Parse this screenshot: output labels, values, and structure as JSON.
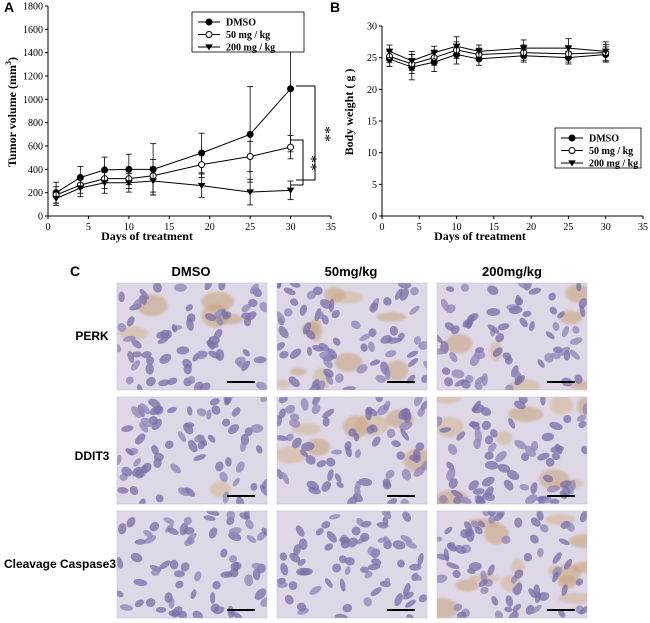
{
  "panels": {
    "a": {
      "label": "A"
    },
    "b": {
      "label": "B"
    },
    "c": {
      "label": "C",
      "columns": [
        "DMSO",
        "50mg/kg",
        "200mg/kg"
      ],
      "rows": [
        "PERK",
        "DDIT3",
        "Cleavage Caspase3"
      ]
    }
  },
  "chart_data": [
    {
      "type": "line",
      "panel": "A",
      "title": "",
      "xlabel": "Days of treatment",
      "ylabel": "Tumor volume (mm",
      "ylabel_sup": "3",
      "ylabel_end": ")",
      "xlim": [
        0,
        35
      ],
      "ylim": [
        0,
        1800
      ],
      "xticks": [
        0,
        5,
        10,
        15,
        20,
        25,
        30,
        35
      ],
      "yticks": [
        0,
        200,
        400,
        600,
        800,
        1000,
        1200,
        1400,
        1600,
        1800
      ],
      "legend_position": "top-right",
      "x": [
        1,
        4,
        7,
        10,
        13,
        19,
        25,
        30
      ],
      "series": [
        {
          "name": "DMSO",
          "marker": "filled-circle",
          "values": [
            200,
            330,
            395,
            400,
            400,
            540,
            700,
            1090
          ],
          "errors": [
            90,
            95,
            110,
            130,
            220,
            170,
            410,
            540
          ]
        },
        {
          "name": "50 mg / kg",
          "marker": "open-circle",
          "values": [
            180,
            265,
            320,
            320,
            345,
            440,
            510,
            590
          ],
          "errors": [
            70,
            70,
            85,
            85,
            140,
            110,
            130,
            100
          ]
        },
        {
          "name": "200 mg / kg",
          "marker": "filled-triangle-down",
          "values": [
            150,
            240,
            285,
            285,
            300,
            260,
            205,
            220
          ],
          "errors": [
            60,
            75,
            90,
            80,
            120,
            100,
            110,
            80
          ]
        }
      ],
      "annotations": [
        "**",
        "**"
      ]
    },
    {
      "type": "line",
      "panel": "B",
      "title": "",
      "xlabel": "Days of treatment",
      "ylabel": "Body weight ( g )",
      "xlim": [
        0,
        35
      ],
      "ylim": [
        0,
        30
      ],
      "xticks": [
        0,
        5,
        10,
        15,
        20,
        25,
        30,
        35
      ],
      "yticks": [
        0,
        5,
        10,
        15,
        20,
        25,
        30
      ],
      "legend_position": "center-right",
      "x": [
        1,
        4,
        7,
        10,
        13,
        19,
        25,
        30
      ],
      "series": [
        {
          "name": "DMSO",
          "marker": "filled-circle",
          "values": [
            24.8,
            23.5,
            24.3,
            25.5,
            24.8,
            25.3,
            25.0,
            25.5
          ],
          "errors": [
            1.2,
            2.0,
            1.5,
            1.5,
            1.0,
            1.0,
            1.0,
            1.2
          ]
        },
        {
          "name": "50 mg / kg",
          "marker": "open-circle",
          "values": [
            25.2,
            24.0,
            25.0,
            26.2,
            25.5,
            25.8,
            25.6,
            25.8
          ],
          "errors": [
            1.0,
            1.5,
            1.2,
            1.3,
            1.0,
            1.2,
            1.3,
            1.3
          ]
        },
        {
          "name": "200 mg / kg",
          "marker": "filled-triangle-down",
          "values": [
            26.0,
            24.5,
            25.8,
            26.8,
            26.0,
            26.5,
            26.5,
            26.0
          ],
          "errors": [
            1.0,
            1.5,
            1.0,
            1.5,
            1.0,
            1.3,
            1.5,
            1.5
          ]
        }
      ]
    }
  ]
}
